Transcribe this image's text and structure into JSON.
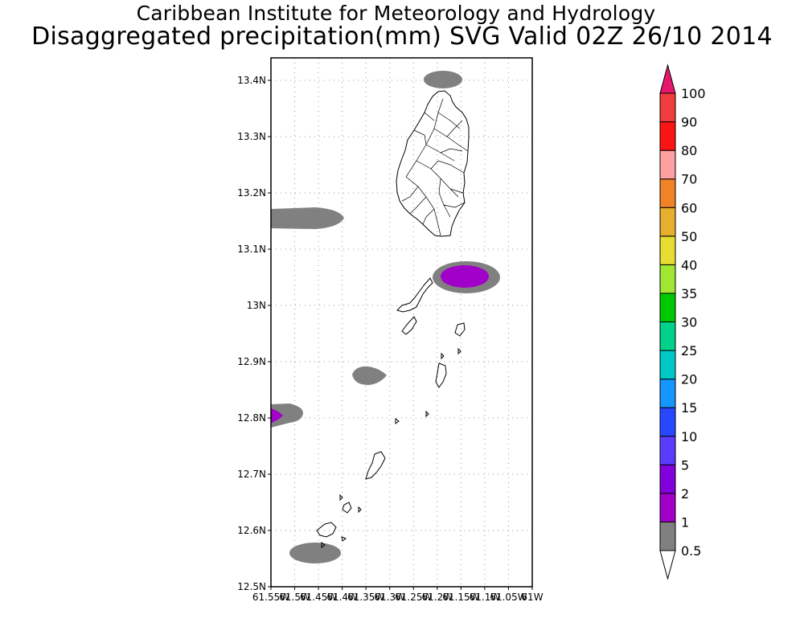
{
  "header": {
    "title": "Caribbean Institute for Meteorology and Hydrology",
    "subtitle": "Disaggregated precipitation(mm) SVG Valid 02Z 26/10 2014"
  },
  "map": {
    "lat_range": [
      12.5,
      13.44
    ],
    "lon_range": [
      -61.55,
      -61.0
    ],
    "lat_ticks": [
      "13.4N",
      "13.3N",
      "13.2N",
      "13.1N",
      "13N",
      "12.9N",
      "12.8N",
      "12.7N",
      "12.6N",
      "12.5N"
    ],
    "lon_ticks": [
      "61.55W",
      "61.5W",
      "61.45W",
      "61.4W",
      "61.35W",
      "61.3W",
      "61.25W",
      "61.2W",
      "61.15W",
      "61.1W",
      "61.05W",
      "61W"
    ],
    "grid": true
  },
  "colorbar": {
    "labels": [
      "0.5",
      "1",
      "2",
      "5",
      "10",
      "15",
      "20",
      "25",
      "30",
      "35",
      "40",
      "50",
      "60",
      "70",
      "80",
      "90",
      "100"
    ],
    "colors": [
      "#808080",
      "#a000c8",
      "#8200dc",
      "#5a3cff",
      "#2848ff",
      "#1496ff",
      "#00c8c8",
      "#00d28c",
      "#00c800",
      "#a0e632",
      "#e6dc32",
      "#e6af2d",
      "#f08228",
      "#ffa0a0",
      "#fa1414",
      "#f03c3c"
    ],
    "top_arrow_color": "#e6186e"
  }
}
